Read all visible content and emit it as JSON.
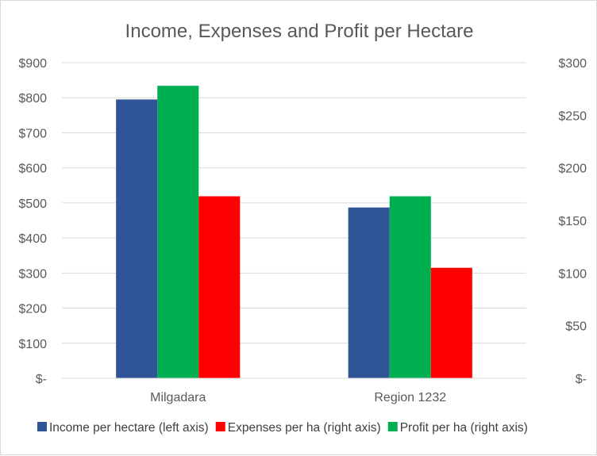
{
  "chart_data": {
    "type": "bar",
    "title": "Income, Expenses and Profit per Hectare",
    "categories": [
      "Milgadara",
      "Region 1232"
    ],
    "series": [
      {
        "name": "Income per hectare (left axis)",
        "axis": "left",
        "color": "#2f5597",
        "values": [
          795,
          487
        ]
      },
      {
        "name": "Profit per ha (right axis)",
        "axis": "right",
        "color": "#00b050",
        "values": [
          278,
          173
        ]
      },
      {
        "name": "Expenses per ha (right axis)",
        "axis": "right",
        "color": "#ff0000",
        "values": [
          173,
          105
        ]
      }
    ],
    "bar_order": [
      0,
      1,
      2
    ],
    "legend_order": [
      0,
      2,
      1
    ],
    "left_axis": {
      "ylim": [
        0,
        900
      ],
      "ticks": [
        0,
        100,
        200,
        300,
        400,
        500,
        600,
        700,
        800,
        900
      ],
      "tick_labels": [
        "$-",
        "$100",
        "$200",
        "$300",
        "$400",
        "$500",
        "$600",
        "$700",
        "$800",
        "$900"
      ]
    },
    "right_axis": {
      "ylim": [
        0,
        300
      ],
      "ticks": [
        0,
        50,
        100,
        150,
        200,
        250,
        300
      ],
      "tick_labels": [
        "$-",
        "$50",
        "$100",
        "$150",
        "$200",
        "$250",
        "$300"
      ]
    },
    "grid": true,
    "legend_position": "bottom"
  }
}
